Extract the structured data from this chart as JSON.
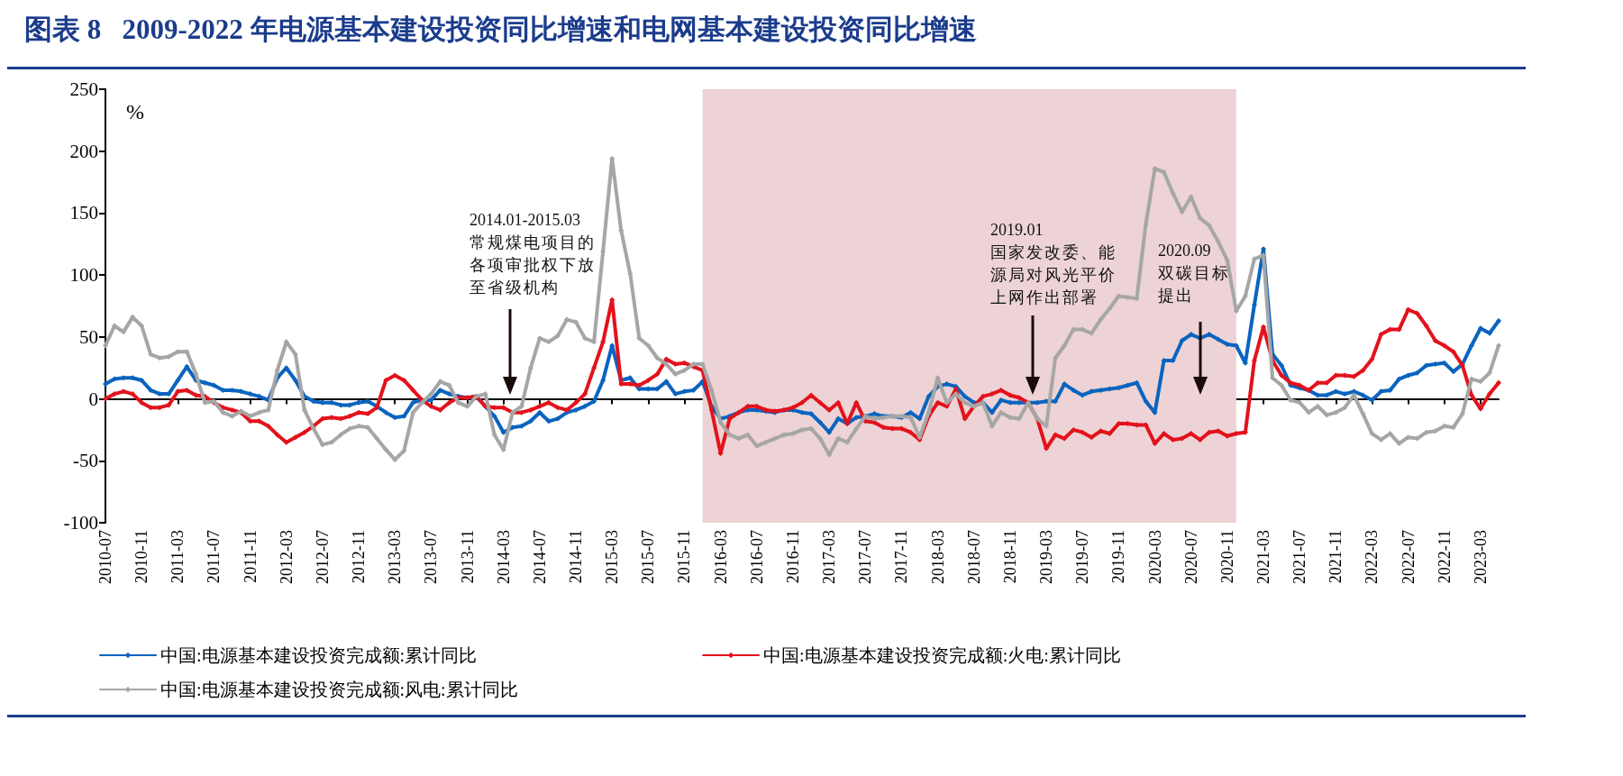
{
  "chart_data": {
    "type": "line",
    "title": "图表 8   2009-2022 年电源基本建设投资同比增速和电网基本建设投资同比增速",
    "ylabel": "%",
    "x": [
      "2010-07",
      "2010-08",
      "2010-09",
      "2010-10",
      "2010-11",
      "2010-12",
      "2011-01",
      "2011-02",
      "2011-03",
      "2011-04",
      "2011-05",
      "2011-06",
      "2011-07",
      "2011-08",
      "2011-09",
      "2011-10",
      "2011-11",
      "2011-12",
      "2012-01",
      "2012-02",
      "2012-03",
      "2012-04",
      "2012-05",
      "2012-06",
      "2012-07",
      "2012-08",
      "2012-09",
      "2012-10",
      "2012-11",
      "2012-12",
      "2013-01",
      "2013-02",
      "2013-03",
      "2013-04",
      "2013-05",
      "2013-06",
      "2013-07",
      "2013-08",
      "2013-09",
      "2013-10",
      "2013-11",
      "2013-12",
      "2014-01",
      "2014-02",
      "2014-03",
      "2014-04",
      "2014-05",
      "2014-06",
      "2014-07",
      "2014-08",
      "2014-09",
      "2014-10",
      "2014-11",
      "2014-12",
      "2015-01",
      "2015-02",
      "2015-03",
      "2015-04",
      "2015-05",
      "2015-06",
      "2015-07",
      "2015-08",
      "2015-09",
      "2015-10",
      "2015-11",
      "2015-12",
      "2016-01",
      "2016-02",
      "2016-03",
      "2016-04",
      "2016-05",
      "2016-06",
      "2016-07",
      "2016-08",
      "2016-09",
      "2016-10",
      "2016-11",
      "2016-12",
      "2017-01",
      "2017-02",
      "2017-03",
      "2017-04",
      "2017-05",
      "2017-06",
      "2017-07",
      "2017-08",
      "2017-09",
      "2017-10",
      "2017-11",
      "2017-12",
      "2018-01",
      "2018-02",
      "2018-03",
      "2018-04",
      "2018-05",
      "2018-06",
      "2018-07",
      "2018-08",
      "2018-09",
      "2018-10",
      "2018-11",
      "2018-12",
      "2019-01",
      "2019-02",
      "2019-03",
      "2019-04",
      "2019-05",
      "2019-06",
      "2019-07",
      "2019-08",
      "2019-09",
      "2019-10",
      "2019-11",
      "2019-12",
      "2020-01",
      "2020-02",
      "2020-03",
      "2020-04",
      "2020-05",
      "2020-06",
      "2020-07",
      "2020-08",
      "2020-09",
      "2020-10",
      "2020-11",
      "2020-12",
      "2021-01",
      "2021-02",
      "2021-03",
      "2021-04",
      "2021-05",
      "2021-06",
      "2021-07",
      "2021-08",
      "2021-09",
      "2021-10",
      "2021-11",
      "2021-12",
      "2022-01",
      "2022-02",
      "2022-03",
      "2022-04",
      "2022-05",
      "2022-06",
      "2022-07",
      "2022-08",
      "2022-09",
      "2022-10",
      "2022-11",
      "2022-12",
      "2023-01",
      "2023-02",
      "2023-03",
      "2023-04",
      "2023-05"
    ],
    "series": [
      {
        "name": "中国:电源基本建设投资完成额:累计同比",
        "color": "#0a64bf",
        "values": [
          12,
          16,
          17,
          17,
          15,
          7,
          4,
          4,
          15,
          26,
          15,
          13,
          11,
          7,
          7,
          6,
          4,
          2,
          -1,
          17,
          25,
          15,
          2,
          -2,
          -3,
          -3,
          -5,
          -5,
          -3,
          -2,
          -6,
          -11,
          -15,
          -14,
          -3,
          -1,
          -1,
          7,
          4,
          2,
          1,
          2,
          -6,
          -14,
          -27,
          -23,
          -22,
          -18,
          -11,
          -18,
          -16,
          -11,
          -9,
          -6,
          -2,
          15,
          43,
          15,
          17,
          8,
          8,
          8,
          14,
          4,
          6,
          7,
          14,
          -6,
          -16,
          -14,
          -11,
          -9,
          -9,
          -10,
          -11,
          -9,
          -9,
          -11,
          -12,
          -19,
          -27,
          -16,
          -20,
          -15,
          -14,
          -12,
          -14,
          -14,
          -15,
          -11,
          -16,
          2,
          10,
          12,
          10,
          2,
          -3,
          -3,
          -11,
          -1,
          -3,
          -3,
          -3,
          -3,
          -2,
          -2,
          12,
          7,
          3,
          6,
          7,
          8,
          9,
          11,
          13,
          -2,
          -11,
          31,
          31,
          47,
          52,
          49,
          52,
          48,
          44,
          43,
          29,
          76,
          121,
          36,
          27,
          11,
          9,
          7,
          3,
          3,
          6,
          4,
          6,
          3,
          -1,
          6,
          7,
          16,
          19,
          21,
          27,
          28,
          29,
          22,
          28,
          43,
          57,
          53,
          63
        ]
      },
      {
        "name": "中国:电源基本建设投资完成额:火电:累计同比",
        "color": "#e3121c",
        "values": [
          0,
          4,
          6,
          4,
          -3,
          -7,
          -7,
          -5,
          6,
          7,
          3,
          2,
          -3,
          -7,
          -9,
          -11,
          -18,
          -18,
          -22,
          -29,
          -35,
          -31,
          -27,
          -22,
          -16,
          -15,
          -16,
          -14,
          -11,
          -12,
          -7,
          15,
          19,
          15,
          7,
          -1,
          -6,
          -9,
          -3,
          1,
          1,
          2,
          -6,
          -7,
          -7,
          -11,
          -11,
          -9,
          -6,
          -3,
          -7,
          -9,
          -3,
          4,
          25,
          46,
          80,
          12,
          12,
          11,
          15,
          20,
          32,
          28,
          29,
          26,
          23,
          -9,
          -44,
          -16,
          -11,
          -6,
          -6,
          -9,
          -10,
          -9,
          -7,
          -3,
          3,
          -3,
          -9,
          -3,
          -20,
          -3,
          -18,
          -19,
          -23,
          -24,
          -24,
          -27,
          -33,
          -14,
          -3,
          -6,
          8,
          -16,
          -6,
          2,
          4,
          7,
          3,
          1,
          -3,
          -16,
          -40,
          -29,
          -32,
          -25,
          -27,
          -31,
          -26,
          -28,
          -20,
          -20,
          -21,
          -21,
          -36,
          -28,
          -33,
          -32,
          -28,
          -33,
          -27,
          -26,
          -30,
          -28,
          -27,
          31,
          58,
          31,
          19,
          13,
          11,
          7,
          13,
          13,
          19,
          19,
          18,
          23,
          32,
          52,
          56,
          56,
          72,
          69,
          59,
          47,
          43,
          38,
          27,
          3,
          -8,
          4,
          13
        ]
      },
      {
        "name": "中国:电源基本建设投资完成额:风电:累计同比",
        "color": "#a6a6a6",
        "values": [
          43,
          59,
          54,
          66,
          59,
          36,
          33,
          34,
          38,
          38,
          20,
          -3,
          -2,
          -11,
          -14,
          -10,
          -14,
          -11,
          -9,
          23,
          46,
          36,
          -9,
          -24,
          -37,
          -35,
          -29,
          -24,
          -22,
          -23,
          -32,
          -41,
          -49,
          -42,
          -11,
          -3,
          4,
          14,
          11,
          -3,
          -6,
          2,
          4,
          -29,
          -41,
          -11,
          -6,
          25,
          49,
          46,
          51,
          64,
          62,
          49,
          46,
          119,
          194,
          136,
          101,
          49,
          43,
          33,
          28,
          20,
          23,
          28,
          28,
          7,
          -19,
          -29,
          -32,
          -29,
          -38,
          -35,
          -32,
          -29,
          -28,
          -25,
          -24,
          -32,
          -45,
          -32,
          -35,
          -24,
          -14,
          -16,
          -15,
          -14,
          -14,
          -15,
          -31,
          -11,
          17,
          -3,
          4,
          -3,
          -6,
          -3,
          -22,
          -11,
          -15,
          -16,
          -3,
          -16,
          -22,
          33,
          43,
          56,
          56,
          53,
          64,
          73,
          83,
          82,
          81,
          141,
          186,
          183,
          166,
          151,
          163,
          146,
          140,
          127,
          112,
          71,
          83,
          113,
          116,
          17,
          11,
          -1,
          -3,
          -11,
          -6,
          -13,
          -11,
          -7,
          3,
          -12,
          -28,
          -33,
          -28,
          -36,
          -31,
          -32,
          -27,
          -26,
          -22,
          -23,
          -12,
          16,
          14,
          21,
          43
        ]
      }
    ],
    "xlim": [
      "2010-07",
      "2023-05"
    ],
    "xticks": [
      "2010-07",
      "2010-11",
      "2011-03",
      "2011-07",
      "2011-11",
      "2012-03",
      "2012-07",
      "2012-11",
      "2013-03",
      "2013-07",
      "2013-11",
      "2014-03",
      "2014-07",
      "2014-11",
      "2015-03",
      "2015-07",
      "2015-11",
      "2016-03",
      "2016-07",
      "2016-11",
      "2017-03",
      "2017-07",
      "2017-11",
      "2018-03",
      "2018-07",
      "2018-11",
      "2019-03",
      "2019-07",
      "2019-11",
      "2020-03",
      "2020-07",
      "2020-11",
      "2021-03",
      "2021-07",
      "2021-11",
      "2022-03",
      "2022-07",
      "2022-11",
      "2023-03"
    ],
    "ylim": [
      -100,
      250
    ],
    "yticks": [
      -100,
      -50,
      0,
      50,
      100,
      150,
      200,
      250
    ],
    "bands": [
      {
        "axis": "x",
        "from": "2016-01",
        "to": "2020-12",
        "color": "#edd3d5"
      }
    ],
    "annotations": [
      "2014.01-2015.03\n常规煤电项目的各项审批权下放至省级机构",
      "2019.01\n国家发改委、能源局对风光平价上网作出部署",
      "2020.09\n双碳目标提出"
    ],
    "marker": "diamond",
    "legend": "bottom"
  }
}
